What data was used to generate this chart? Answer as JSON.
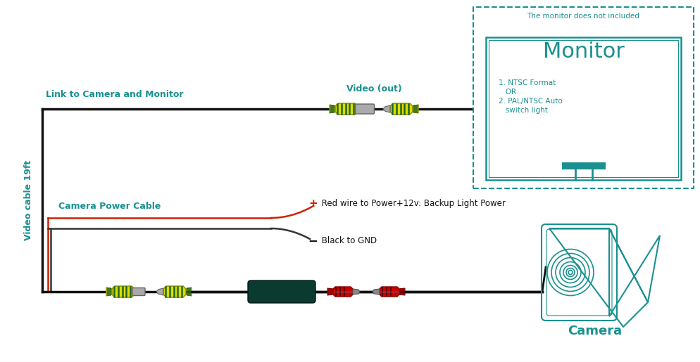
{
  "bg_color": "#ffffff",
  "teal": "#1a9090",
  "yellow": "#dddd00",
  "yellow_body": "#cccc00",
  "green_stripe": "#226622",
  "black_wire": "#111111",
  "red_wire": "#cc2200",
  "dark_box_color": "#0a3a30",
  "red_conn_color": "#cc0000",
  "gray_conn": "#888888",
  "monitor_note": "The monitor does not included",
  "monitor_title": "Monitor",
  "monitor_text1": "1. NTSC Format",
  "monitor_text2": "   OR",
  "monitor_text3": "2. PAL/NTSC Auto",
  "monitor_text4": "   switch light",
  "camera_label": "Camera",
  "video_cable_label": "Video cable 19ft",
  "link_label": "Link to Camera and Monitor",
  "cam_power_label": "Camera Power Cable",
  "red_label": "Red wire to Power+12v: Backup Light Power",
  "black_label": "Black to GND",
  "video_out_label": "Video (out)"
}
